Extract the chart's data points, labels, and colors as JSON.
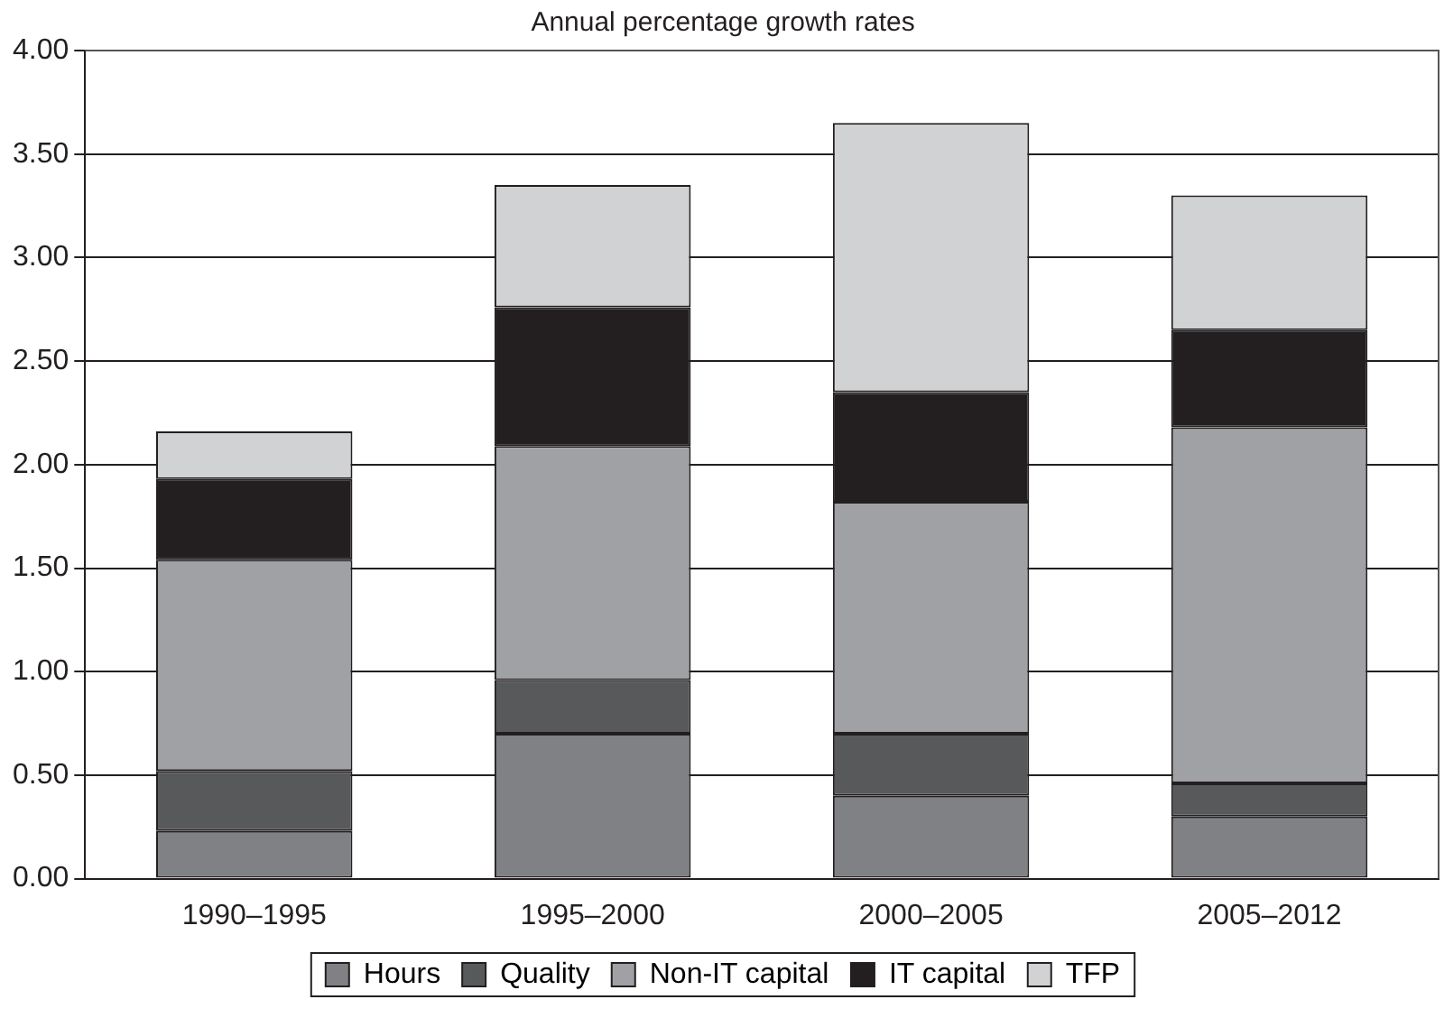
{
  "chart_data": {
    "type": "bar",
    "title": "Annual percentage growth rates",
    "stacked": true,
    "categories": [
      "1990–1995",
      "1995–2000",
      "2000–2005",
      "2005–2012"
    ],
    "series": [
      {
        "name": "Hours",
        "color": "#808184",
        "values": [
          0.23,
          0.7,
          0.4,
          0.3
        ]
      },
      {
        "name": "Quality",
        "color": "#58595b",
        "values": [
          0.29,
          0.26,
          0.3,
          0.16
        ]
      },
      {
        "name": "Non-IT capital",
        "color": "#a0a1a4",
        "values": [
          1.02,
          1.13,
          1.12,
          1.72
        ]
      },
      {
        "name": "IT capital",
        "color": "#231f20",
        "values": [
          0.39,
          0.67,
          0.53,
          0.47
        ]
      },
      {
        "name": "TFP",
        "color": "#d1d2d4",
        "values": [
          0.23,
          0.59,
          1.3,
          0.65
        ]
      }
    ],
    "ylim": [
      0,
      4
    ],
    "yticks": [
      {
        "value": 0,
        "label": "0.00"
      },
      {
        "value": 0.5,
        "label": "0.50"
      },
      {
        "value": 1,
        "label": "1.00"
      },
      {
        "value": 1.5,
        "label": "1.50"
      },
      {
        "value": 2,
        "label": "2.00"
      },
      {
        "value": 2.5,
        "label": "2.50"
      },
      {
        "value": 3,
        "label": "3.00"
      },
      {
        "value": 3.5,
        "label": "3.50"
      },
      {
        "value": 4,
        "label": "4.00"
      }
    ],
    "grid": "y",
    "legend": "bottom"
  }
}
